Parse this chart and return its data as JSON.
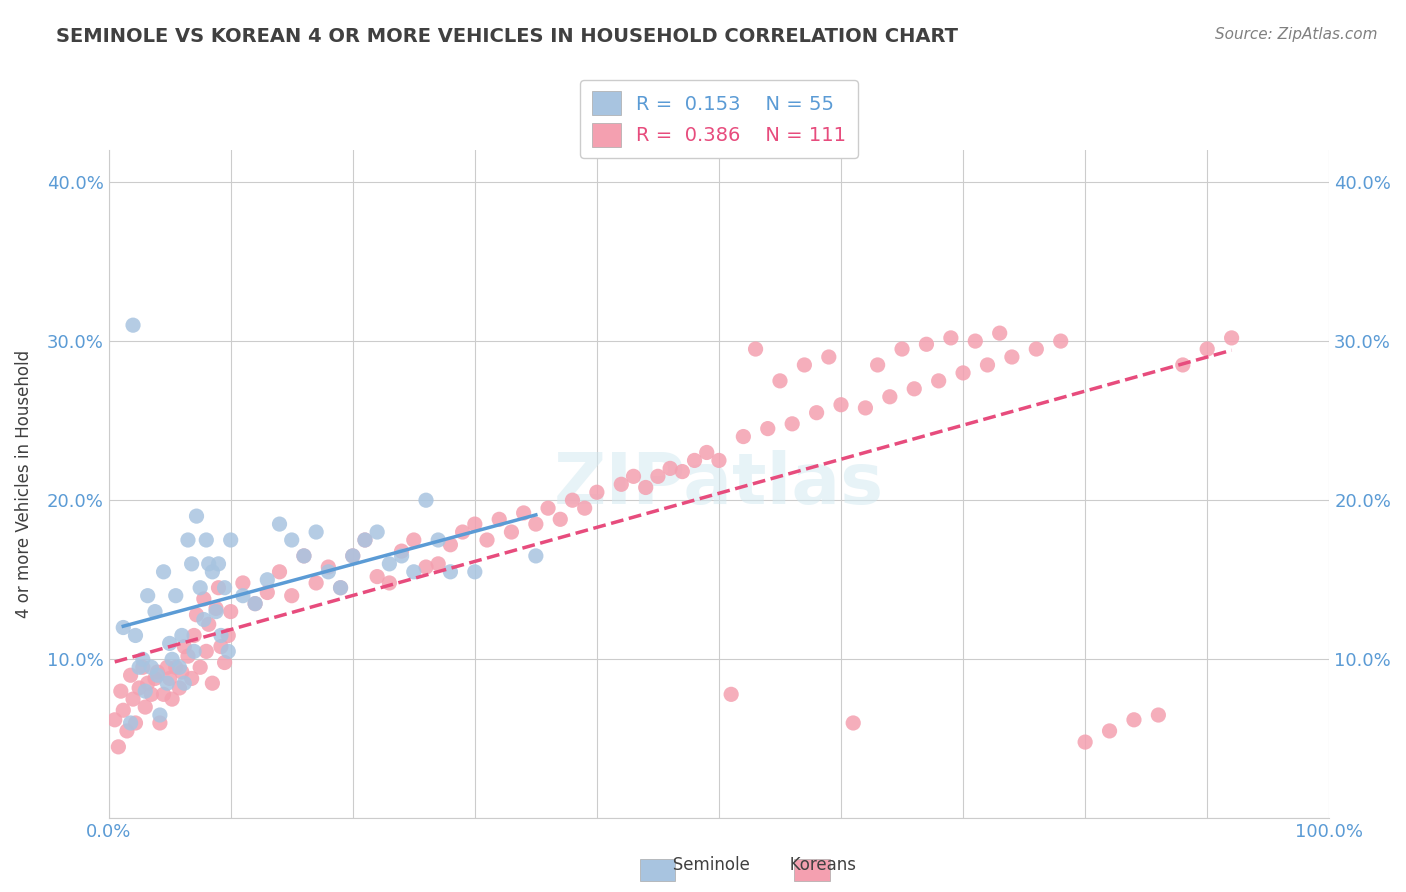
{
  "title": "SEMINOLE VS KOREAN 4 OR MORE VEHICLES IN HOUSEHOLD CORRELATION CHART",
  "source": "Source: ZipAtlas.com",
  "ylabel": "4 or more Vehicles in Household",
  "xlabel": "",
  "xlim": [
    0.0,
    1.0
  ],
  "ylim": [
    0.0,
    0.42
  ],
  "xticks": [
    0.0,
    0.1,
    0.2,
    0.3,
    0.4,
    0.5,
    0.6,
    0.7,
    0.8,
    0.9,
    1.0
  ],
  "yticks": [
    0.0,
    0.1,
    0.2,
    0.3,
    0.4
  ],
  "xtick_labels": [
    "0.0%",
    "",
    "",
    "",
    "",
    "",
    "",
    "",
    "",
    "",
    "100.0%"
  ],
  "ytick_labels": [
    "",
    "10.0%",
    "20.0%",
    "30.0%",
    "40.0%"
  ],
  "watermark": "ZIPatlas",
  "legend_r1": "R =  0.153",
  "legend_n1": "N = 55",
  "legend_r2": "R =  0.386",
  "legend_n2": "N = 111",
  "color_seminole": "#a8c4e0",
  "color_korean": "#f4a0b0",
  "color_line_seminole": "#5b9bd5",
  "color_line_korean": "#e74c7d",
  "seminole_x": [
    0.012,
    0.018,
    0.022,
    0.025,
    0.028,
    0.03,
    0.032,
    0.035,
    0.038,
    0.04,
    0.042,
    0.045,
    0.048,
    0.05,
    0.052,
    0.055,
    0.058,
    0.06,
    0.062,
    0.065,
    0.068,
    0.07,
    0.072,
    0.075,
    0.078,
    0.08,
    0.082,
    0.085,
    0.088,
    0.09,
    0.092,
    0.095,
    0.098,
    0.1,
    0.11,
    0.12,
    0.13,
    0.14,
    0.15,
    0.16,
    0.17,
    0.18,
    0.19,
    0.2,
    0.21,
    0.22,
    0.23,
    0.24,
    0.25,
    0.26,
    0.27,
    0.28,
    0.3,
    0.35,
    0.02
  ],
  "seminole_y": [
    0.12,
    0.06,
    0.115,
    0.095,
    0.1,
    0.08,
    0.14,
    0.095,
    0.13,
    0.09,
    0.065,
    0.155,
    0.085,
    0.11,
    0.1,
    0.14,
    0.095,
    0.115,
    0.085,
    0.175,
    0.16,
    0.105,
    0.19,
    0.145,
    0.125,
    0.175,
    0.16,
    0.155,
    0.13,
    0.16,
    0.115,
    0.145,
    0.105,
    0.175,
    0.14,
    0.135,
    0.15,
    0.185,
    0.175,
    0.165,
    0.18,
    0.155,
    0.145,
    0.165,
    0.175,
    0.18,
    0.16,
    0.165,
    0.155,
    0.2,
    0.175,
    0.155,
    0.155,
    0.165,
    0.31
  ],
  "korean_x": [
    0.005,
    0.008,
    0.01,
    0.012,
    0.015,
    0.018,
    0.02,
    0.022,
    0.025,
    0.028,
    0.03,
    0.032,
    0.035,
    0.038,
    0.04,
    0.042,
    0.045,
    0.048,
    0.05,
    0.052,
    0.055,
    0.058,
    0.06,
    0.062,
    0.065,
    0.068,
    0.07,
    0.072,
    0.075,
    0.078,
    0.08,
    0.082,
    0.085,
    0.088,
    0.09,
    0.092,
    0.095,
    0.098,
    0.1,
    0.11,
    0.12,
    0.13,
    0.14,
    0.15,
    0.16,
    0.17,
    0.18,
    0.19,
    0.2,
    0.21,
    0.22,
    0.23,
    0.24,
    0.25,
    0.26,
    0.27,
    0.28,
    0.29,
    0.3,
    0.31,
    0.32,
    0.33,
    0.34,
    0.35,
    0.36,
    0.37,
    0.38,
    0.39,
    0.4,
    0.42,
    0.43,
    0.44,
    0.45,
    0.46,
    0.47,
    0.48,
    0.49,
    0.5,
    0.52,
    0.54,
    0.56,
    0.58,
    0.6,
    0.62,
    0.64,
    0.66,
    0.68,
    0.7,
    0.72,
    0.74,
    0.76,
    0.78,
    0.8,
    0.82,
    0.84,
    0.86,
    0.88,
    0.9,
    0.92,
    0.51,
    0.53,
    0.55,
    0.57,
    0.59,
    0.61,
    0.63,
    0.65,
    0.67,
    0.69,
    0.71,
    0.73
  ],
  "korean_y": [
    0.062,
    0.045,
    0.08,
    0.068,
    0.055,
    0.09,
    0.075,
    0.06,
    0.082,
    0.095,
    0.07,
    0.085,
    0.078,
    0.088,
    0.092,
    0.06,
    0.078,
    0.095,
    0.088,
    0.075,
    0.095,
    0.082,
    0.092,
    0.108,
    0.102,
    0.088,
    0.115,
    0.128,
    0.095,
    0.138,
    0.105,
    0.122,
    0.085,
    0.132,
    0.145,
    0.108,
    0.098,
    0.115,
    0.13,
    0.148,
    0.135,
    0.142,
    0.155,
    0.14,
    0.165,
    0.148,
    0.158,
    0.145,
    0.165,
    0.175,
    0.152,
    0.148,
    0.168,
    0.175,
    0.158,
    0.16,
    0.172,
    0.18,
    0.185,
    0.175,
    0.188,
    0.18,
    0.192,
    0.185,
    0.195,
    0.188,
    0.2,
    0.195,
    0.205,
    0.21,
    0.215,
    0.208,
    0.215,
    0.22,
    0.218,
    0.225,
    0.23,
    0.225,
    0.24,
    0.245,
    0.248,
    0.255,
    0.26,
    0.258,
    0.265,
    0.27,
    0.275,
    0.28,
    0.285,
    0.29,
    0.295,
    0.3,
    0.048,
    0.055,
    0.062,
    0.065,
    0.285,
    0.295,
    0.302,
    0.078,
    0.295,
    0.275,
    0.285,
    0.29,
    0.06,
    0.285,
    0.295,
    0.298,
    0.302,
    0.3,
    0.305
  ]
}
